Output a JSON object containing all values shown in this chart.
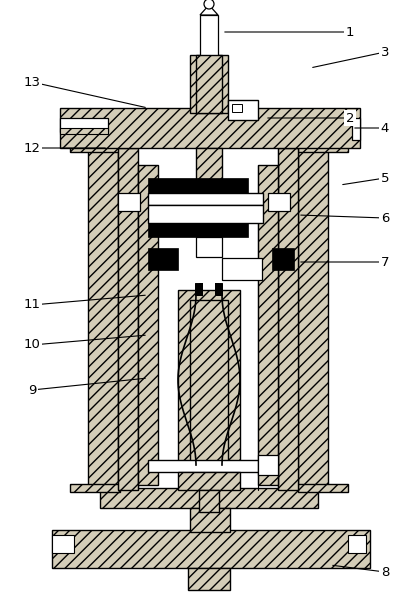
{
  "bg_color": "#ffffff",
  "hatch_fc": "#d4cdb8",
  "lw": 1.0,
  "annotation_lines": {
    "1": {
      "lp": [
        350,
        32
      ],
      "tp": [
        222,
        32
      ]
    },
    "2": {
      "lp": [
        350,
        118
      ],
      "tp": [
        265,
        118
      ]
    },
    "3": {
      "lp": [
        385,
        52
      ],
      "tp": [
        310,
        68
      ]
    },
    "4": {
      "lp": [
        385,
        128
      ],
      "tp": [
        352,
        128
      ]
    },
    "5": {
      "lp": [
        385,
        178
      ],
      "tp": [
        340,
        185
      ]
    },
    "6": {
      "lp": [
        385,
        218
      ],
      "tp": [
        298,
        215
      ]
    },
    "7": {
      "lp": [
        385,
        262
      ],
      "tp": [
        298,
        262
      ]
    },
    "8": {
      "lp": [
        385,
        572
      ],
      "tp": [
        330,
        565
      ]
    },
    "9": {
      "lp": [
        32,
        390
      ],
      "tp": [
        148,
        378
      ]
    },
    "10": {
      "lp": [
        32,
        345
      ],
      "tp": [
        148,
        335
      ]
    },
    "11": {
      "lp": [
        32,
        305
      ],
      "tp": [
        148,
        295
      ]
    },
    "12": {
      "lp": [
        32,
        148
      ],
      "tp": [
        108,
        148
      ]
    },
    "13": {
      "lp": [
        32,
        82
      ],
      "tp": [
        148,
        108
      ]
    }
  }
}
